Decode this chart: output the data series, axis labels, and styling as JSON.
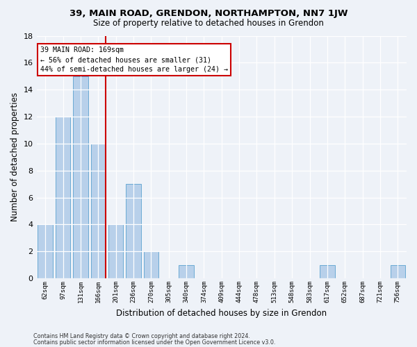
{
  "title1": "39, MAIN ROAD, GRENDON, NORTHAMPTON, NN7 1JW",
  "title2": "Size of property relative to detached houses in Grendon",
  "xlabel": "Distribution of detached houses by size in Grendon",
  "ylabel": "Number of detached properties",
  "categories": [
    "62sqm",
    "97sqm",
    "131sqm",
    "166sqm",
    "201sqm",
    "236sqm",
    "270sqm",
    "305sqm",
    "340sqm",
    "374sqm",
    "409sqm",
    "444sqm",
    "478sqm",
    "513sqm",
    "548sqm",
    "583sqm",
    "617sqm",
    "652sqm",
    "687sqm",
    "721sqm",
    "756sqm"
  ],
  "values": [
    4,
    12,
    15,
    10,
    4,
    7,
    2,
    0,
    1,
    0,
    0,
    0,
    0,
    0,
    0,
    0,
    1,
    0,
    0,
    0,
    1
  ],
  "bar_color": "#b8d0ea",
  "bar_edgecolor": "#6aaad4",
  "highlight_index": 3,
  "vline_color": "#cc0000",
  "annotation_line1": "39 MAIN ROAD: 169sqm",
  "annotation_line2": "← 56% of detached houses are smaller (31)",
  "annotation_line3": "44% of semi-detached houses are larger (24) →",
  "ylim": [
    0,
    18
  ],
  "yticks": [
    0,
    2,
    4,
    6,
    8,
    10,
    12,
    14,
    16,
    18
  ],
  "background_color": "#eef2f8",
  "footer1": "Contains HM Land Registry data © Crown copyright and database right 2024.",
  "footer2": "Contains public sector information licensed under the Open Government Licence v3.0."
}
